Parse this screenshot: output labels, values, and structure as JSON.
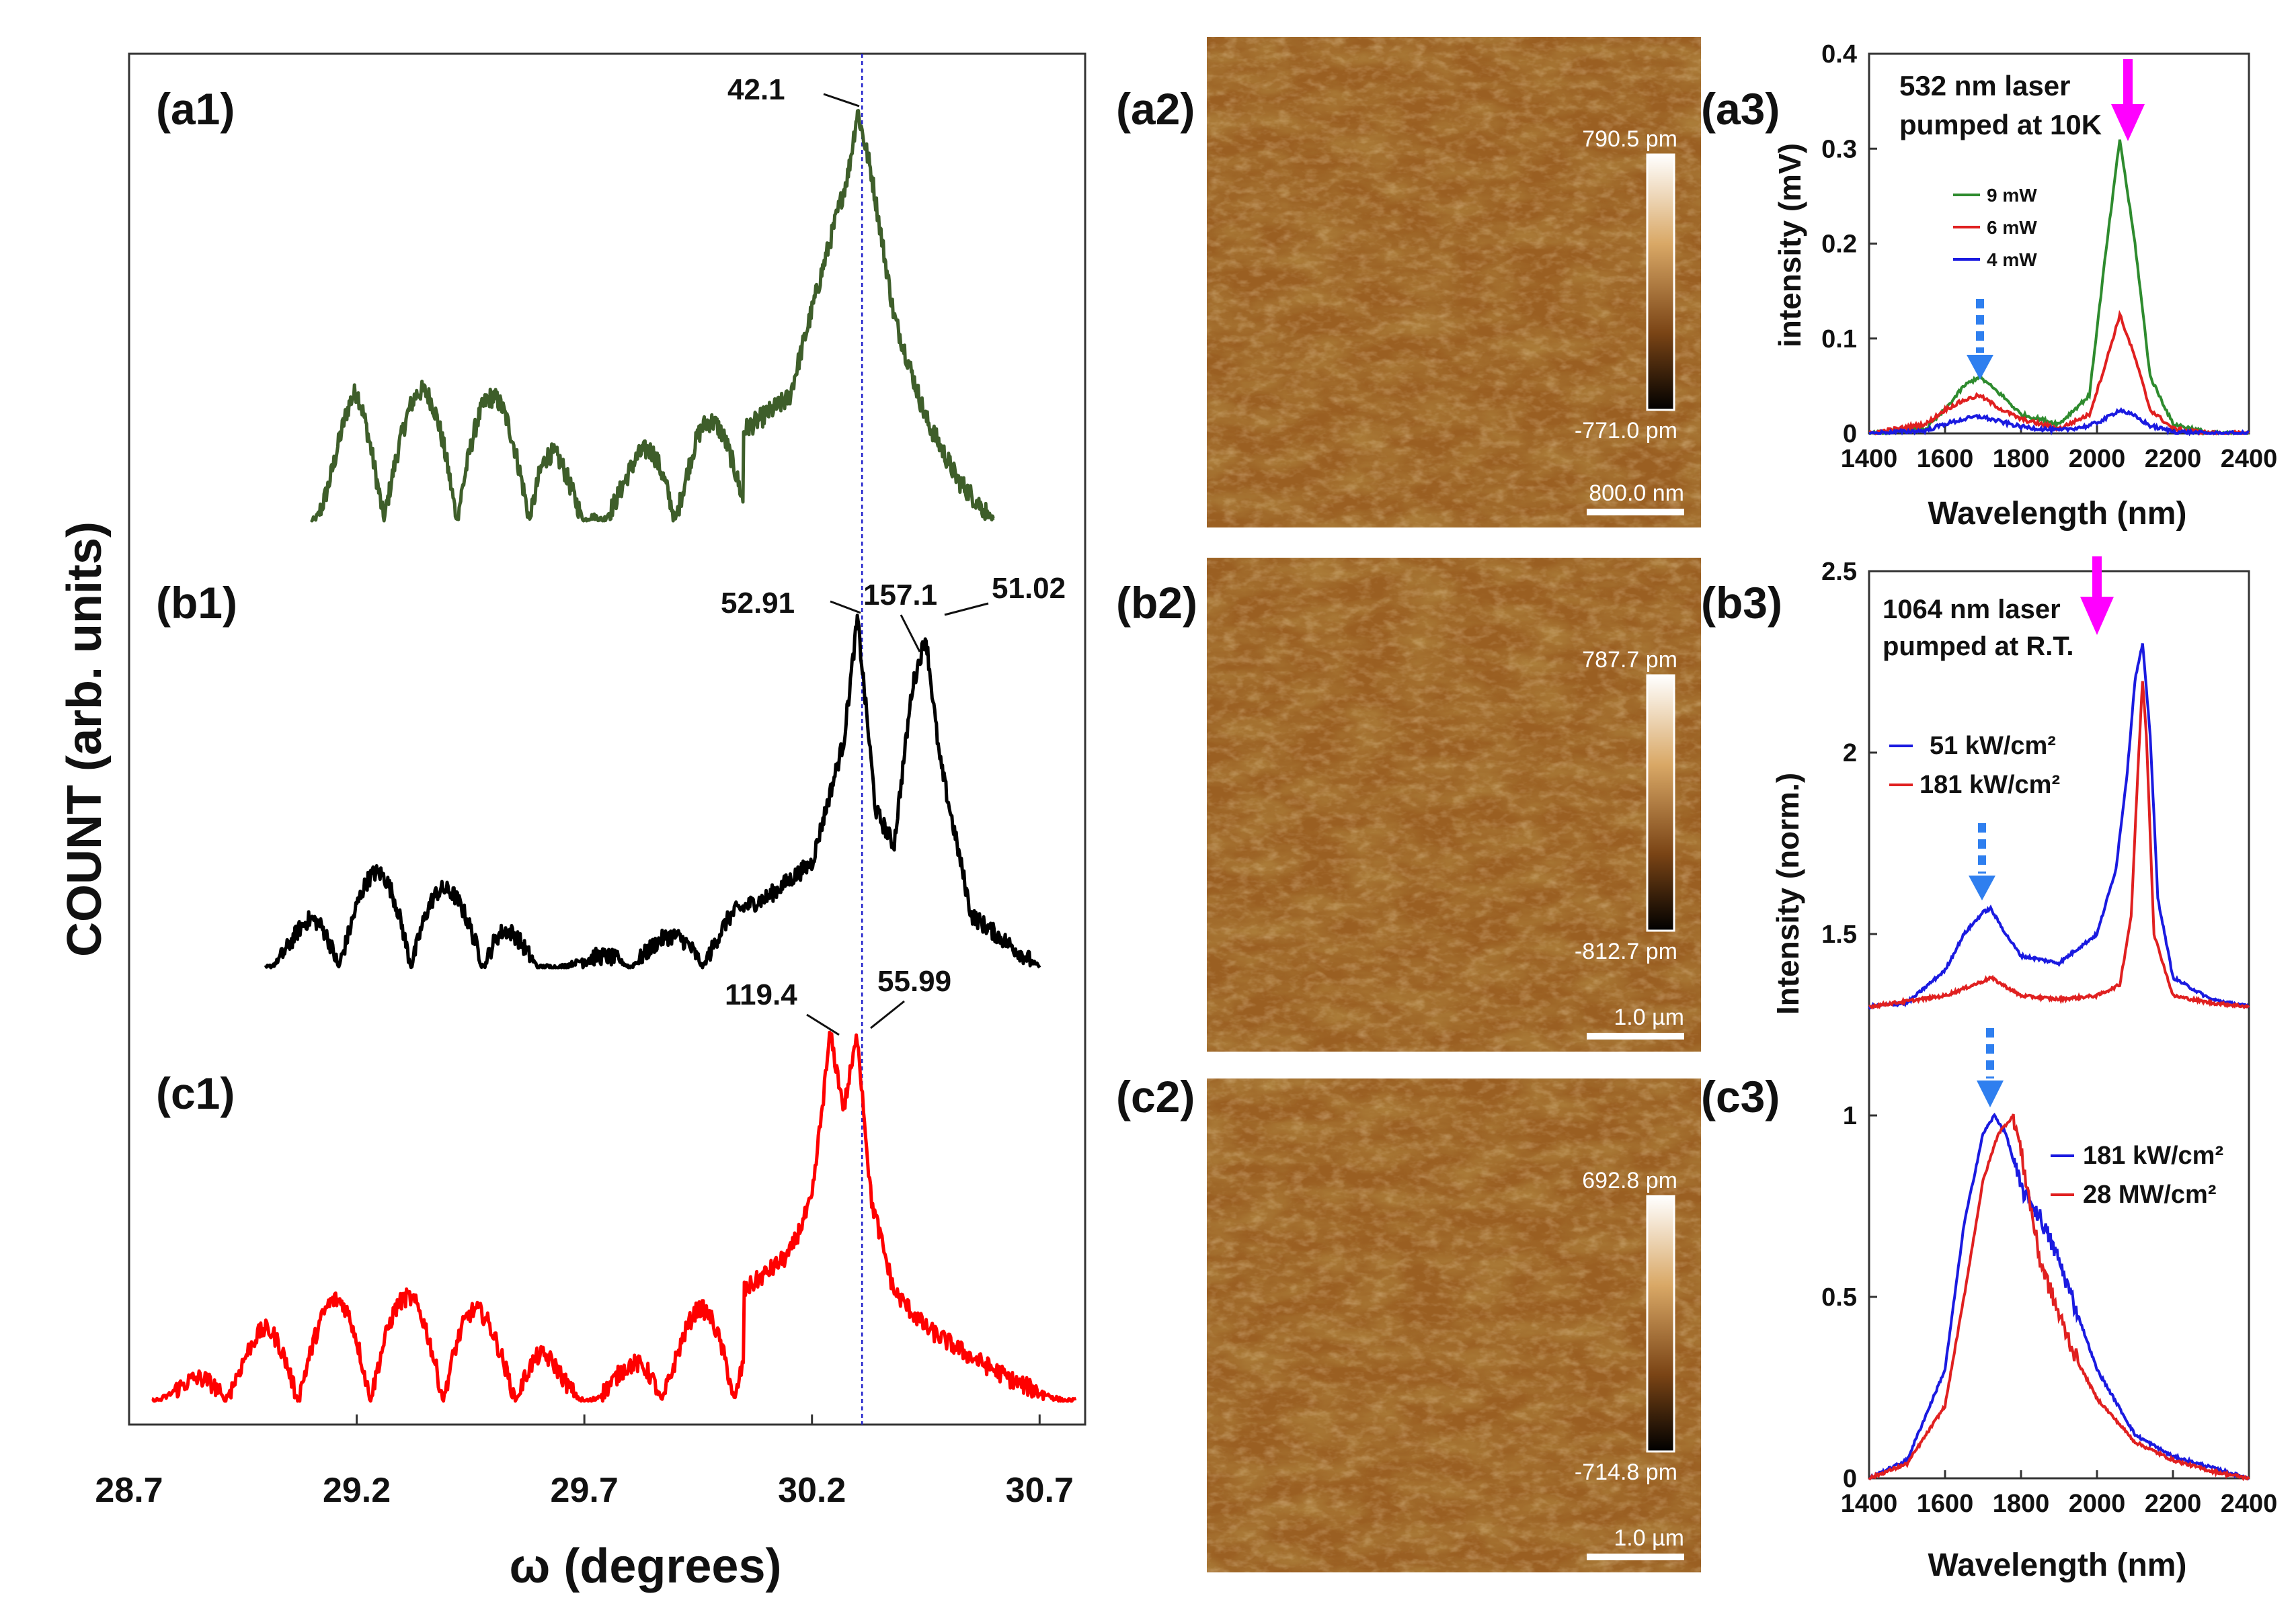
{
  "colors": {
    "a": "#3e5e2a",
    "b": "#000000",
    "c": "#ff0000",
    "blue": "#1a1ae0",
    "red": "#e02020",
    "green": "#2e8b2e",
    "magenta": "#ff00ff",
    "dashblue": "#2f7fef",
    "vline": "#2222cc"
  },
  "chart_data": [
    {
      "type": "line",
      "name": "xrd-rocking-curves",
      "xlabel": "ω (degrees)",
      "ylabel": "COUNT (arb. units)",
      "xlim": [
        28.7,
        30.8
      ],
      "x_ticks": [
        "28.7",
        "29.2",
        "29.7",
        "30.2",
        "30.7"
      ],
      "reference_line_x": 30.31,
      "panels": [
        {
          "label": "(a1)",
          "peaks": [
            {
              "x": 30.3,
              "text": "42.1"
            }
          ],
          "series": {
            "x": [
              29.1,
              29.2,
              29.3,
              29.4,
              29.5,
              29.6,
              29.7,
              29.85,
              29.95,
              30.05,
              30.15,
              30.22,
              30.28,
              30.3,
              30.33,
              30.38,
              30.45,
              30.52,
              30.6
            ],
            "y": [
              0.0,
              0.34,
              0.3,
              0.34,
              0.3,
              0.28,
              0.0,
              0.2,
              0.25,
              0.22,
              0.3,
              0.6,
              0.85,
              1.0,
              0.85,
              0.5,
              0.25,
              0.1,
              0.0
            ]
          }
        },
        {
          "label": "(b1)",
          "peaks": [
            {
              "x": 30.3,
              "text": "52.91"
            },
            {
              "x": 30.42,
              "text": "157.1"
            },
            {
              "x": 30.46,
              "text": "51.02"
            }
          ],
          "series": {
            "x": [
              29.0,
              29.1,
              29.2,
              29.3,
              29.4,
              29.5,
              29.6,
              29.8,
              29.95,
              30.1,
              30.2,
              30.27,
              30.3,
              30.34,
              30.38,
              30.42,
              30.45,
              30.48,
              30.55,
              30.65,
              30.7
            ],
            "y": [
              0.0,
              0.15,
              0.25,
              0.3,
              0.22,
              0.18,
              0.0,
              0.05,
              0.12,
              0.2,
              0.3,
              0.65,
              1.0,
              0.45,
              0.35,
              0.8,
              0.95,
              0.6,
              0.15,
              0.05,
              0.0
            ]
          }
        },
        {
          "label": "(c1)",
          "peaks": [
            {
              "x": 30.25,
              "text": "119.4"
            },
            {
              "x": 30.3,
              "text": "55.99"
            }
          ],
          "series": {
            "x": [
              28.75,
              28.9,
              29.0,
              29.1,
              29.2,
              29.3,
              29.4,
              29.5,
              29.6,
              29.7,
              29.85,
              29.95,
              30.05,
              30.15,
              30.2,
              30.24,
              30.27,
              30.3,
              30.33,
              30.38,
              30.45,
              30.55,
              30.65,
              30.75
            ],
            "y": [
              0.0,
              0.1,
              0.2,
              0.25,
              0.3,
              0.28,
              0.3,
              0.22,
              0.15,
              0.0,
              0.15,
              0.25,
              0.3,
              0.4,
              0.55,
              1.0,
              0.8,
              1.0,
              0.55,
              0.3,
              0.2,
              0.12,
              0.05,
              0.0
            ]
          }
        }
      ]
    },
    {
      "type": "line",
      "name": "pl-10k",
      "label": "(a3)",
      "annotation": [
        "532 nm laser",
        "pumped at 10K"
      ],
      "xlabel": "Wavelength (nm)",
      "ylabel": "intensity (mV)",
      "xlim": [
        1400,
        2400
      ],
      "ylim": [
        0,
        0.4
      ],
      "x_ticks": [
        "1400",
        "1600",
        "1800",
        "2000",
        "2200",
        "2400"
      ],
      "y_ticks": [
        "0",
        "0.1",
        "0.2",
        "0.3",
        "0.4"
      ],
      "legend": "top-left",
      "series": [
        {
          "name": "9 mW",
          "color": "#2e8b2e",
          "x": [
            1400,
            1550,
            1600,
            1650,
            1690,
            1750,
            1800,
            1900,
            1980,
            2020,
            2060,
            2100,
            2140,
            2200,
            2300,
            2400
          ],
          "y": [
            0,
            0.005,
            0.025,
            0.05,
            0.06,
            0.04,
            0.02,
            0.01,
            0.04,
            0.18,
            0.31,
            0.2,
            0.06,
            0.01,
            0.0,
            0.0
          ]
        },
        {
          "name": "6 mW",
          "color": "#e02020",
          "x": [
            1400,
            1550,
            1600,
            1650,
            1690,
            1750,
            1800,
            1900,
            1980,
            2020,
            2060,
            2100,
            2140,
            2200,
            2300,
            2400
          ],
          "y": [
            0,
            0.01,
            0.025,
            0.035,
            0.04,
            0.025,
            0.015,
            0.005,
            0.02,
            0.07,
            0.125,
            0.08,
            0.025,
            0.005,
            0.0,
            0.0
          ]
        },
        {
          "name": "4 mW",
          "color": "#1a1ae0",
          "x": [
            1400,
            1550,
            1600,
            1650,
            1690,
            1750,
            1800,
            1900,
            1980,
            2020,
            2060,
            2100,
            2140,
            2200,
            2300,
            2400
          ],
          "y": [
            0,
            0.003,
            0.01,
            0.015,
            0.018,
            0.012,
            0.007,
            0.003,
            0.008,
            0.015,
            0.025,
            0.018,
            0.008,
            0.002,
            0.0,
            0.0
          ]
        }
      ]
    },
    {
      "type": "line",
      "name": "pl-rt",
      "labels": [
        "(b3)",
        "(c3)"
      ],
      "annotation": [
        "1064 nm laser",
        "pumped at R.T."
      ],
      "xlabel": "Wavelength (nm)",
      "ylabel": "Intensity (norm.)",
      "xlim": [
        1400,
        2400
      ],
      "ylim": [
        0,
        2.5
      ],
      "x_ticks": [
        "1400",
        "1600",
        "1800",
        "2000",
        "2200",
        "2400"
      ],
      "y_ticks": [
        "0",
        "0.5",
        "1",
        "1.5",
        "2",
        "2.5"
      ],
      "series": [
        {
          "name": "51 kW/cm²",
          "group": "b3",
          "color": "#1a1ae0",
          "x": [
            1400,
            1500,
            1600,
            1650,
            1700,
            1720,
            1760,
            1800,
            1900,
            2000,
            2050,
            2080,
            2100,
            2120,
            2140,
            2160,
            2200,
            2300,
            2400
          ],
          "y": [
            1.3,
            1.31,
            1.4,
            1.5,
            1.56,
            1.57,
            1.5,
            1.44,
            1.42,
            1.5,
            1.68,
            1.95,
            2.2,
            2.3,
            2.05,
            1.6,
            1.38,
            1.32,
            1.3
          ]
        },
        {
          "name": "181 kW/cm²",
          "group": "b3",
          "color": "#e02020",
          "x": [
            1400,
            1600,
            1700,
            1720,
            1800,
            1900,
            2000,
            2060,
            2090,
            2110,
            2120,
            2130,
            2150,
            2200,
            2300,
            2400
          ],
          "y": [
            1.3,
            1.33,
            1.37,
            1.38,
            1.33,
            1.32,
            1.33,
            1.36,
            1.55,
            2.0,
            2.2,
            2.05,
            1.5,
            1.33,
            1.31,
            1.3
          ]
        },
        {
          "name": "181 kW/cm²",
          "group": "c3",
          "color": "#1a1ae0",
          "x": [
            1400,
            1500,
            1600,
            1650,
            1700,
            1730,
            1760,
            1800,
            1850,
            1900,
            1950,
            2000,
            2100,
            2200,
            2300,
            2400
          ],
          "y": [
            0.0,
            0.05,
            0.3,
            0.7,
            0.95,
            1.0,
            0.95,
            0.8,
            0.72,
            0.6,
            0.45,
            0.3,
            0.12,
            0.06,
            0.03,
            0.0
          ]
        },
        {
          "name": "28 MW/cm²",
          "group": "c3",
          "color": "#e02020",
          "x": [
            1400,
            1500,
            1600,
            1650,
            1700,
            1740,
            1780,
            1800,
            1850,
            1900,
            1950,
            2000,
            2100,
            2200,
            2300,
            2400
          ],
          "y": [
            0.0,
            0.04,
            0.2,
            0.5,
            0.82,
            0.95,
            1.0,
            0.9,
            0.6,
            0.45,
            0.32,
            0.22,
            0.1,
            0.05,
            0.02,
            0.0
          ]
        }
      ]
    }
  ],
  "afm": [
    {
      "label": "(a2)",
      "max": "790.5 pm",
      "min": "-771.0 pm",
      "scale": "800.0 nm"
    },
    {
      "label": "(b2)",
      "max": "787.7 pm",
      "min": "-812.7 pm",
      "scale": "1.0 µm"
    },
    {
      "label": "(c2)",
      "max": "692.8 pm",
      "min": "-714.8 pm",
      "scale": "1.0 µm"
    }
  ]
}
